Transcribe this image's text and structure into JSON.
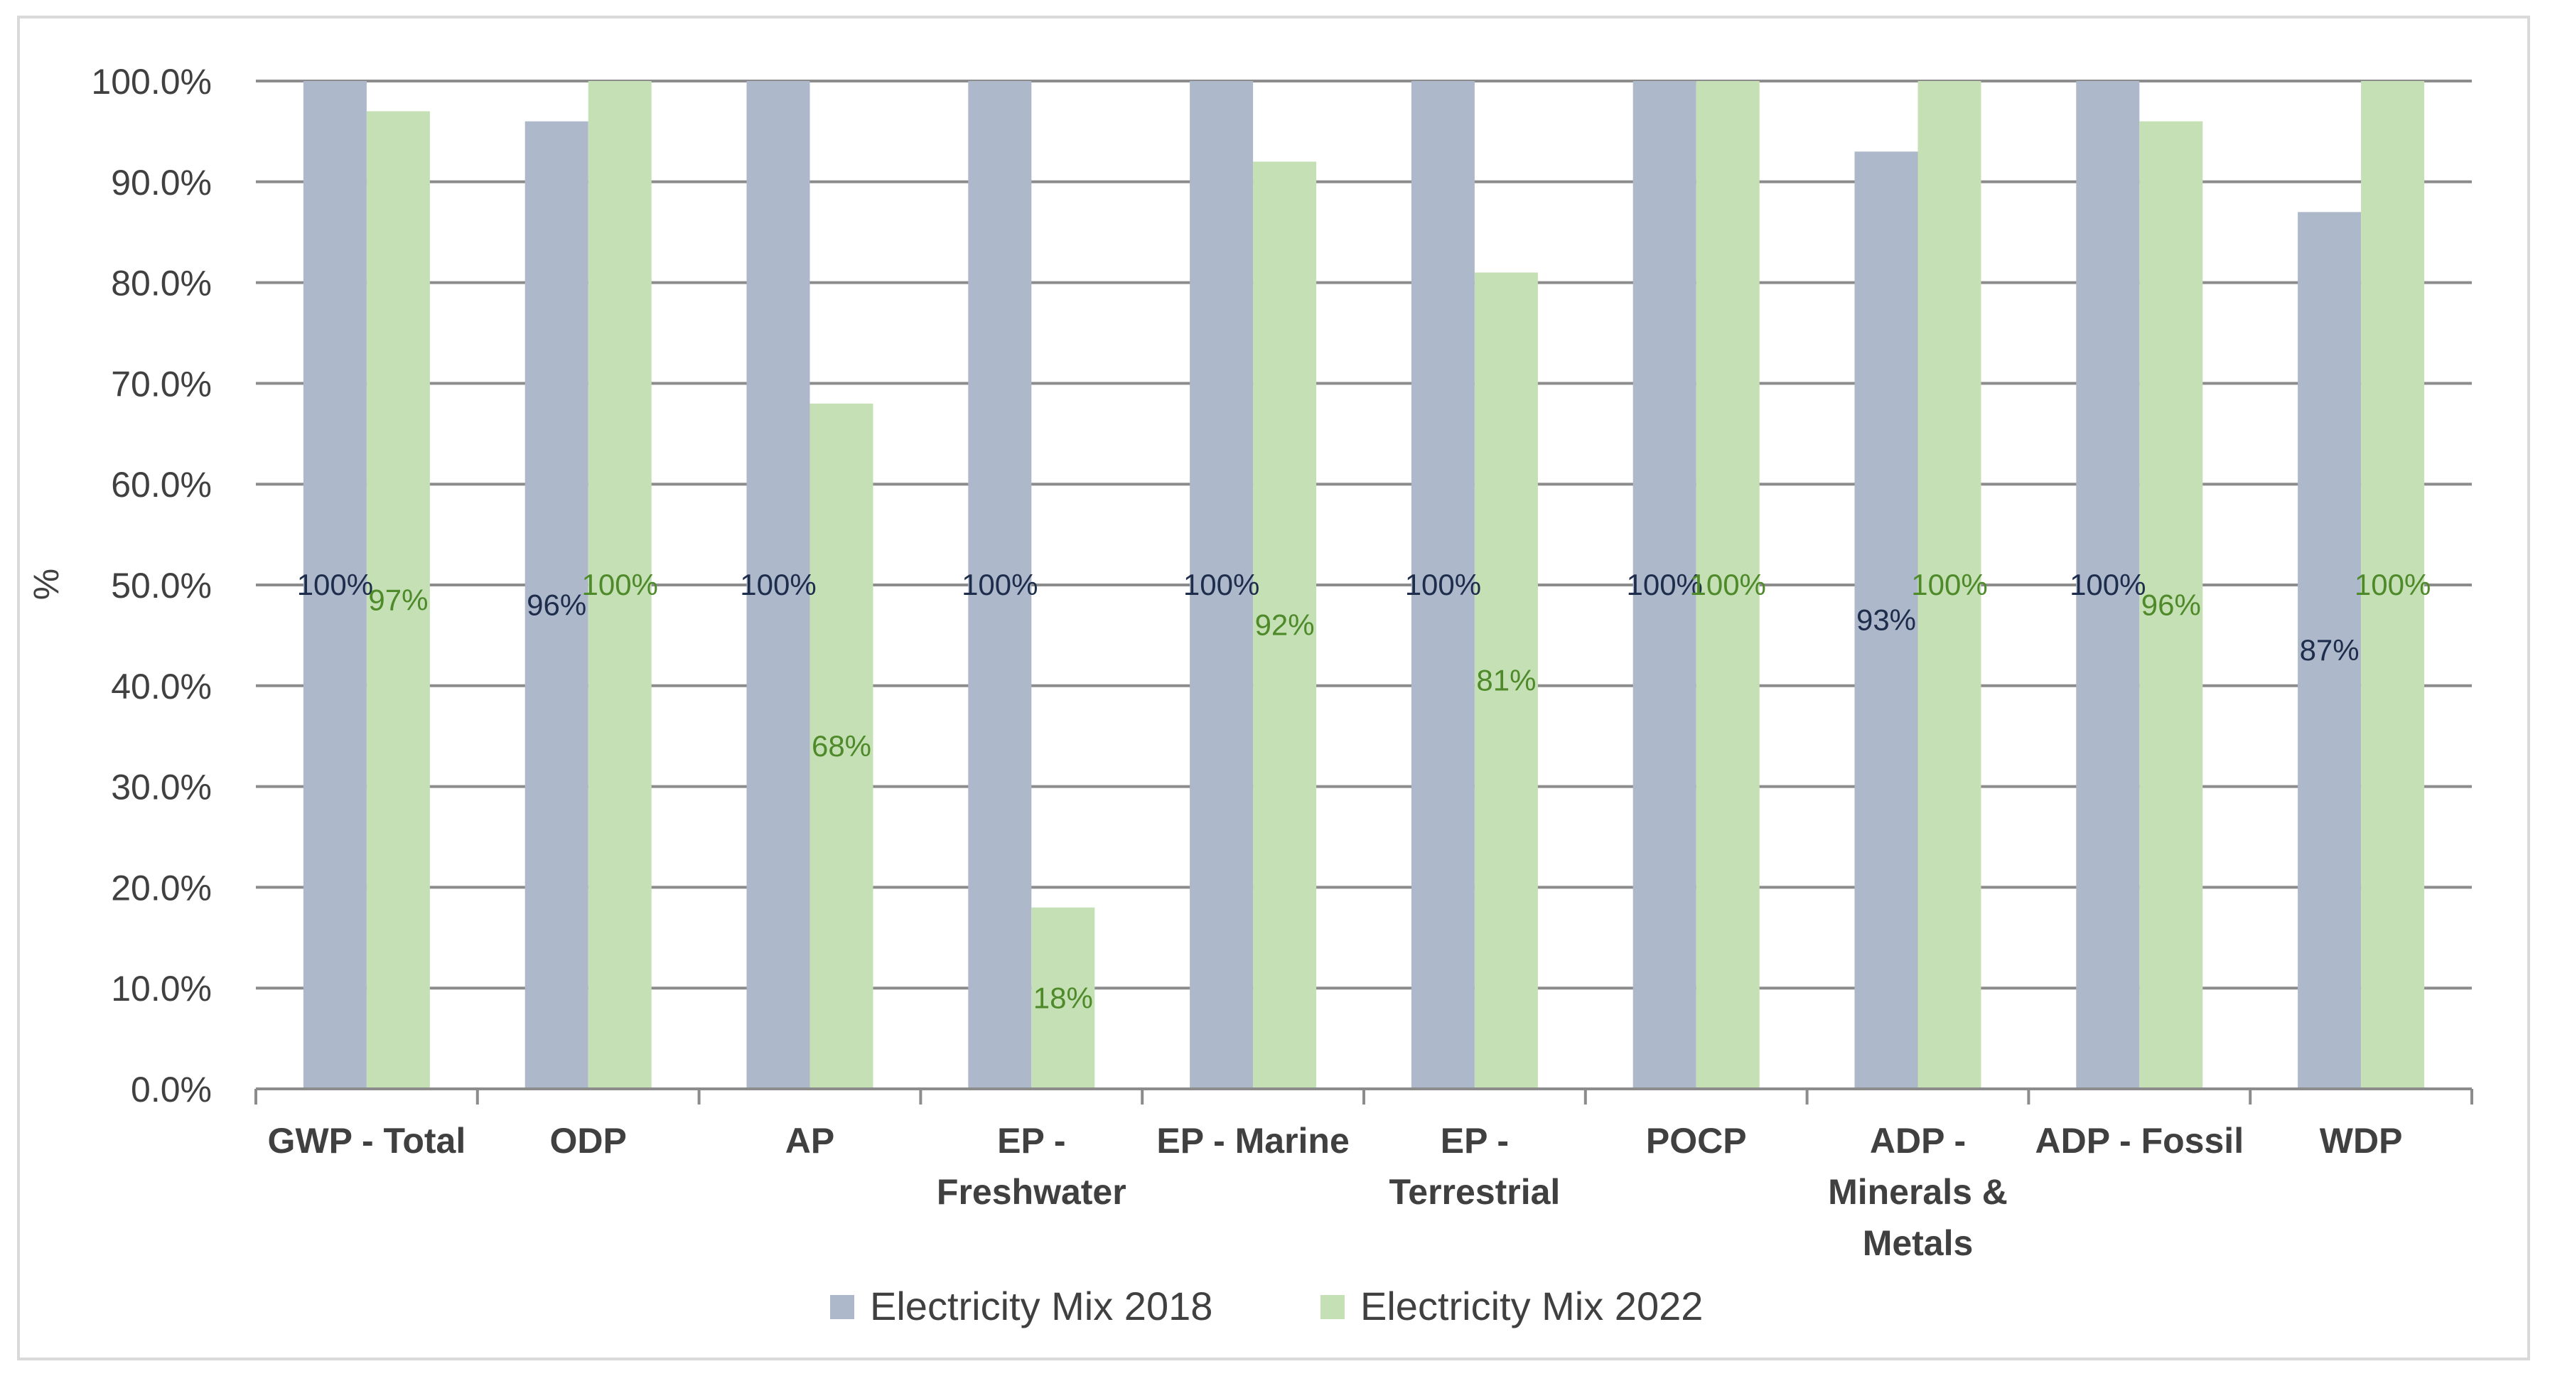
{
  "chart_data": {
    "type": "bar",
    "title": "",
    "xlabel": "",
    "ylabel": "%",
    "ylim": [
      0,
      100
    ],
    "y_ticks": [
      "0.0%",
      "10.0%",
      "20.0%",
      "30.0%",
      "40.0%",
      "50.0%",
      "60.0%",
      "70.0%",
      "80.0%",
      "90.0%",
      "100.0%"
    ],
    "grid": true,
    "legend_position": "bottom-center",
    "categories": [
      [
        "GWP - Total"
      ],
      [
        "ODP"
      ],
      [
        "AP"
      ],
      [
        "EP -",
        "Freshwater"
      ],
      [
        "EP - Marine"
      ],
      [
        "EP -",
        "Terrestrial"
      ],
      [
        "POCP"
      ],
      [
        "ADP -",
        "Minerals &",
        "Metals"
      ],
      [
        "ADP - Fossil"
      ],
      [
        "WDP"
      ]
    ],
    "series": [
      {
        "name": "Electricity Mix 2018",
        "color": "#adb9ca",
        "label_color": "#1f2d4d",
        "values": [
          100,
          96,
          100,
          100,
          100,
          100,
          100,
          93,
          100,
          87
        ],
        "labels": [
          "100%",
          "96%",
          "100%",
          "100%",
          "100%",
          "100%",
          "100%",
          "93%",
          "100%",
          "87%"
        ]
      },
      {
        "name": "Electricity Mix 2022",
        "color": "#c5e0b4",
        "label_color": "#4e8a2a",
        "values": [
          97,
          100,
          68,
          18,
          92,
          81,
          100,
          100,
          96,
          100
        ],
        "labels": [
          "97%",
          "100%",
          "68%",
          "18%",
          "92%",
          "81%",
          "100%",
          "100%",
          "96%",
          "100%"
        ]
      }
    ]
  }
}
